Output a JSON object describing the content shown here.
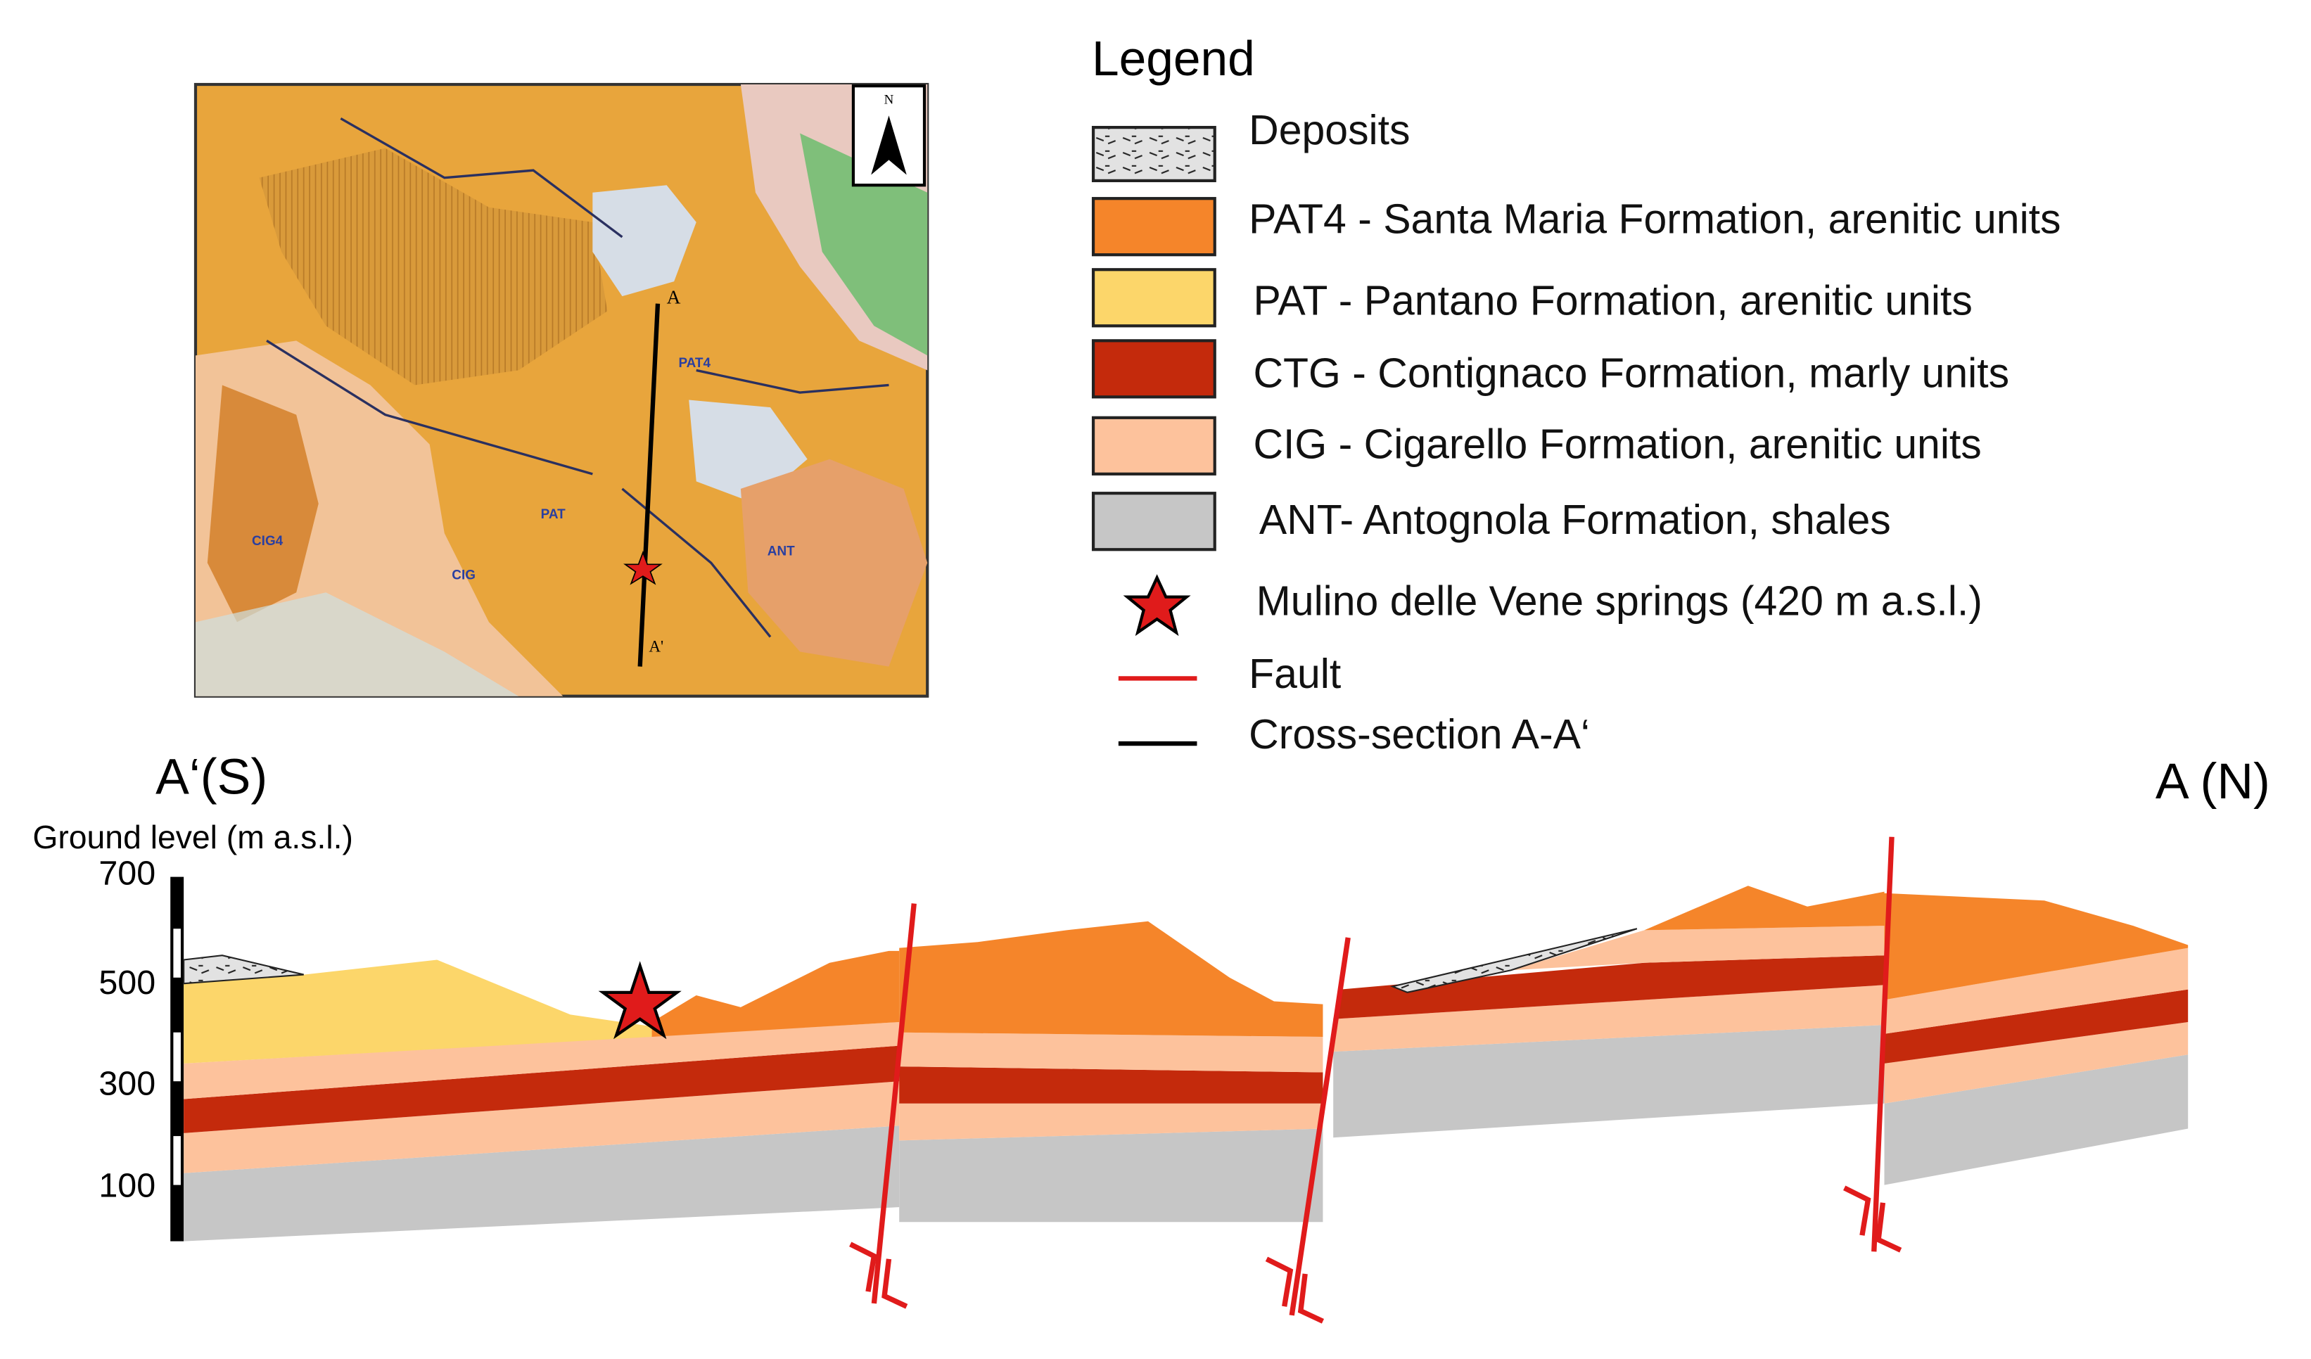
{
  "map": {
    "north": "N",
    "section_start": "A",
    "section_end": "A'",
    "labels": [
      "PAT4",
      "PAT",
      "CIG4",
      "CIG",
      "ANT"
    ]
  },
  "legend": {
    "title": "Legend",
    "items": [
      "Deposits",
      "PAT4 - Santa Maria Formation, arenitic units",
      "PAT - Pantano Formation, arenitic units",
      "CTG - Contignaco Formation, marly units",
      "CIG -  Cigarello Formation, arenitic units",
      "ANT- Antognola Formation, shales",
      "Mulino delle Vene springs (420 m a.s.l.)",
      "Fault",
      "Cross-section A-A‘"
    ]
  },
  "cross_section": {
    "left_end": "A‘(S)",
    "right_end": "A (N)",
    "axis_title": "Ground level (m a.s.l.)",
    "axis_ticks": [
      700,
      500,
      300,
      100
    ]
  }
}
